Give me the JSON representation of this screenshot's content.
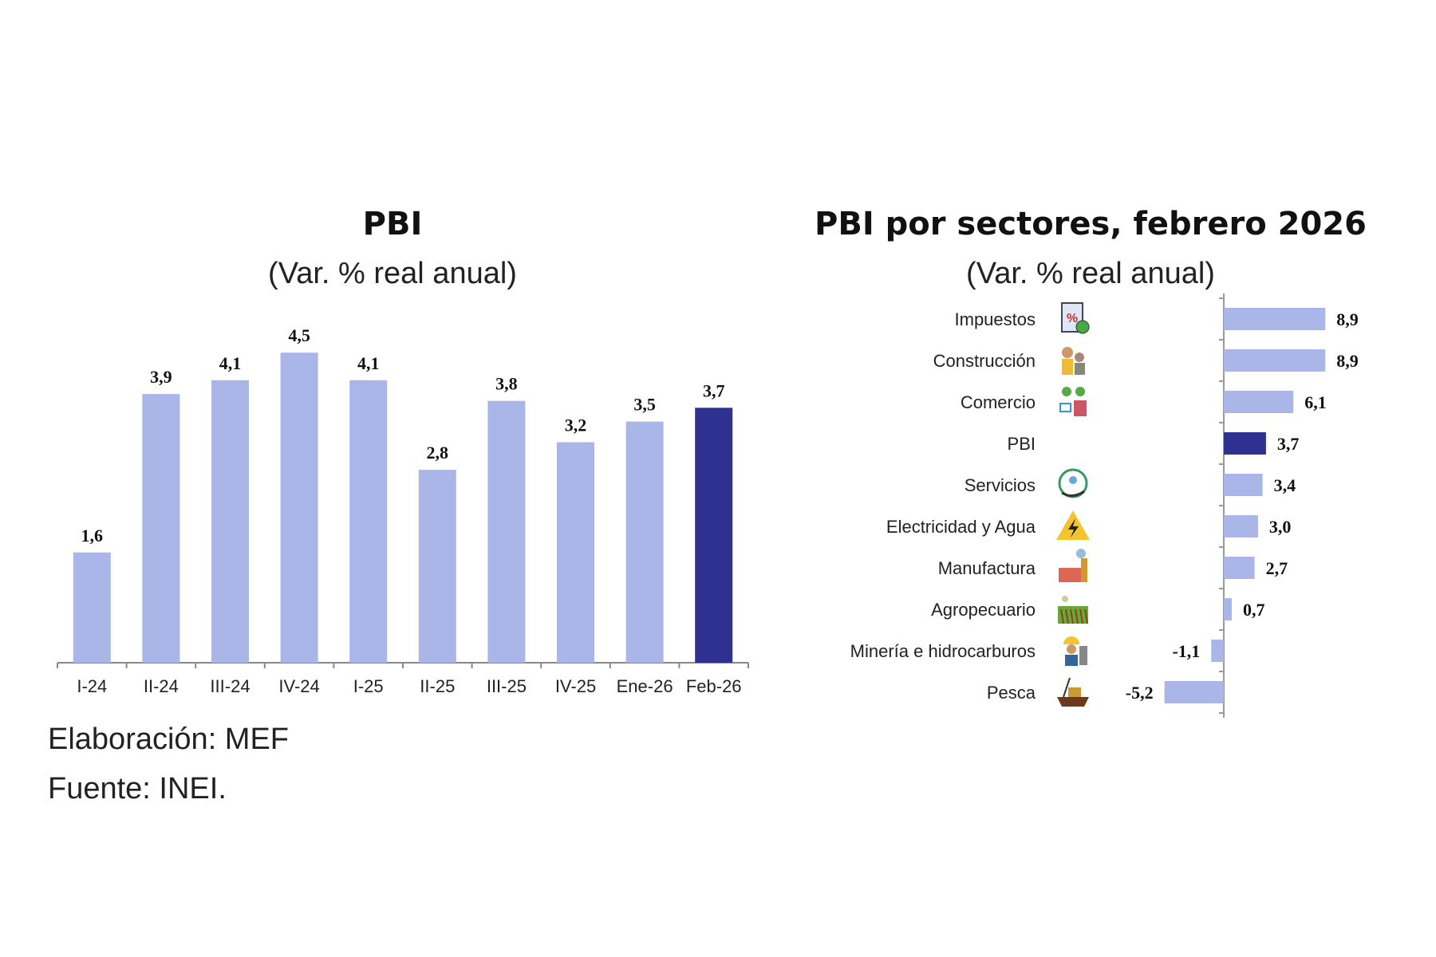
{
  "chart_data": [
    {
      "type": "bar",
      "title": "PBI",
      "subtitle": "(Var. % real anual)",
      "categories": [
        "I-24",
        "II-24",
        "III-24",
        "IV-24",
        "I-25",
        "II-25",
        "III-25",
        "IV-25",
        "Ene-26",
        "Feb-26"
      ],
      "values": [
        1.6,
        3.9,
        4.1,
        4.5,
        4.1,
        2.8,
        3.8,
        3.2,
        3.5,
        3.7
      ],
      "labels": [
        "1,6",
        "3,9",
        "4,1",
        "4,5",
        "4,1",
        "2,8",
        "3,8",
        "3,2",
        "3,5",
        "3,7"
      ],
      "highlight_index": 9,
      "xlabel": "",
      "ylabel": "",
      "ylim": [
        0,
        4.5
      ],
      "grid": false
    },
    {
      "type": "bar",
      "orientation": "horizontal",
      "title": "PBI por sectores, febrero 2026",
      "subtitle": "(Var. % real anual)",
      "categories": [
        "Impuestos",
        "Construcción",
        "Comercio",
        "PBI",
        "Servicios",
        "Electricidad y Agua",
        "Manufactura",
        "Agropecuario",
        "Minería e hidrocarburos",
        "Pesca"
      ],
      "icons": [
        "tax-document-icon",
        "construction-workers-icon",
        "commerce-icon",
        "",
        "services-hand-icon",
        "electricity-warning-icon",
        "factory-icon",
        "farm-field-icon",
        "miner-icon",
        "fishing-boat-icon"
      ],
      "values": [
        8.9,
        8.9,
        6.1,
        3.7,
        3.4,
        3.0,
        2.7,
        0.7,
        -1.1,
        -5.2
      ],
      "labels": [
        "8,9",
        "8,9",
        "6,1",
        "3,7",
        "3,4",
        "3,0",
        "2,7",
        "0,7",
        "-1,1",
        "-5,2"
      ],
      "highlight_index": 3,
      "xlim": [
        -5.2,
        8.9
      ],
      "grid": false
    }
  ],
  "colors": {
    "bar": "#aab6e8",
    "highlight": "#2e3190",
    "highlight_label": "#2e3190"
  },
  "footer": {
    "elaboracion": "Elaboración: MEF",
    "fuente": "Fuente: INEI."
  }
}
